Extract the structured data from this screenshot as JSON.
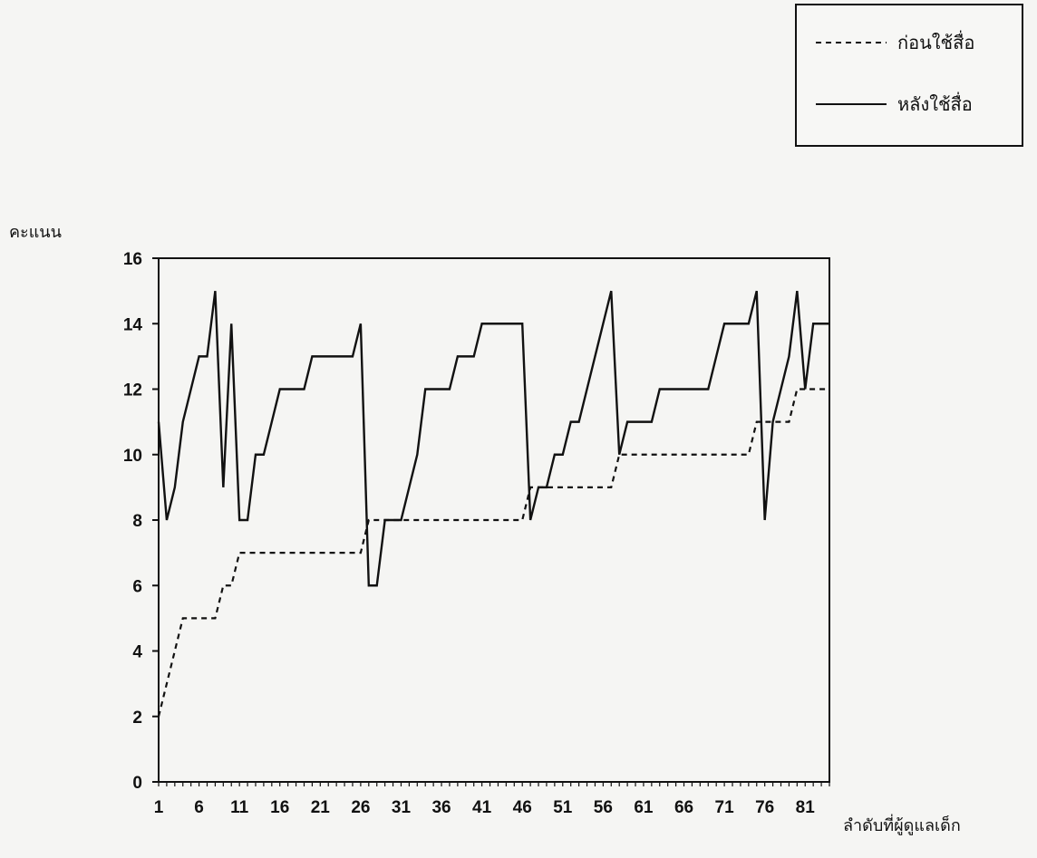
{
  "chart_data": {
    "type": "line",
    "title": "",
    "ylabel": "คะแนน",
    "xlabel": "ลำดับที่ผู้ดูแลเด็ก",
    "xlim": [
      1,
      84
    ],
    "ylim": [
      0,
      16
    ],
    "yticks": [
      0,
      2,
      4,
      6,
      8,
      10,
      12,
      14,
      16
    ],
    "xtick_labels": [
      "1",
      "6",
      "11",
      "16",
      "21",
      "26",
      "31",
      "36",
      "41",
      "46",
      "51",
      "56",
      "61",
      "66",
      "71",
      "76",
      "81"
    ],
    "grid": false,
    "legend_position": "top-right, outside plot",
    "series": [
      {
        "name": "ก่อนใช้สื่อ",
        "style": "dashed",
        "color": "#111111",
        "values": [
          2,
          3,
          4,
          5,
          5,
          5,
          5,
          5,
          6,
          6,
          7,
          7,
          7,
          7,
          7,
          7,
          7,
          7,
          7,
          7,
          7,
          7,
          7,
          7,
          7,
          7,
          8,
          8,
          8,
          8,
          8,
          8,
          8,
          8,
          8,
          8,
          8,
          8,
          8,
          8,
          8,
          8,
          8,
          8,
          8,
          8,
          9,
          9,
          9,
          9,
          9,
          9,
          9,
          9,
          9,
          9,
          9,
          10,
          10,
          10,
          10,
          10,
          10,
          10,
          10,
          10,
          10,
          10,
          10,
          10,
          10,
          10,
          10,
          10,
          11,
          11,
          11,
          11,
          11,
          12,
          12,
          12,
          12,
          12
        ]
      },
      {
        "name": "หลังใช้สื่อ",
        "style": "solid",
        "color": "#111111",
        "values": [
          11,
          8,
          9,
          11,
          12,
          13,
          13,
          15,
          9,
          14,
          8,
          8,
          10,
          10,
          11,
          12,
          12,
          12,
          12,
          13,
          13,
          13,
          13,
          13,
          13,
          14,
          6,
          6,
          8,
          8,
          8,
          9,
          10,
          12,
          12,
          12,
          12,
          13,
          13,
          13,
          14,
          14,
          14,
          14,
          14,
          14,
          8,
          9,
          9,
          10,
          10,
          11,
          11,
          12,
          13,
          14,
          15,
          10,
          11,
          11,
          11,
          11,
          12,
          12,
          12,
          12,
          12,
          12,
          12,
          13,
          14,
          14,
          14,
          14,
          15,
          8,
          11,
          12,
          13,
          15,
          12,
          14,
          14,
          14
        ]
      }
    ]
  }
}
